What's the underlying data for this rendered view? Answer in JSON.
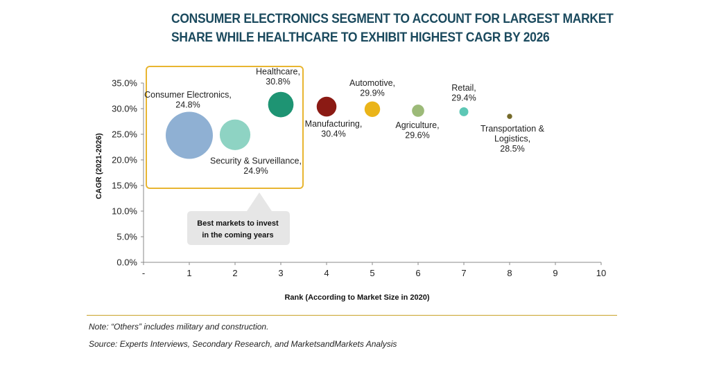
{
  "title_lines": [
    "CONSUMER ELECTRONICS SEGMENT TO ACCOUNT FOR LARGEST MARKET",
    "SHARE WHILE HEALTHCARE TO EXHIBIT HIGHEST CAGR BY 2026"
  ],
  "callout": {
    "lines": [
      "Best markets to invest",
      "in the coming years"
    ],
    "box_color": "#e8b530",
    "bubble_color": "#e6e6e6"
  },
  "note": "Note: “Others” includes military and construction.",
  "source": "Source: Experts Interviews, Secondary Research, and MarketsandMarkets Analysis",
  "chart_data": {
    "type": "scatter",
    "title": "CONSUMER ELECTRONICS SEGMENT TO ACCOUNT FOR LARGEST MARKET SHARE WHILE HEALTHCARE TO EXHIBIT HIGHEST CAGR BY 2026",
    "xlabel": "Rank (According to Market Size in 2020)",
    "ylabel": "CAGR (2021-2026)",
    "xlim": [
      0,
      10
    ],
    "ylim": [
      0,
      35
    ],
    "x_tick_labels": [
      "-",
      "1",
      "2",
      "3",
      "4",
      "5",
      "6",
      "7",
      "8",
      "9",
      "10"
    ],
    "y_tick_labels": [
      "0.0%",
      "5.0%",
      "10.0%",
      "15.0%",
      "20.0%",
      "25.0%",
      "30.0%",
      "35.0%"
    ],
    "grid": false,
    "legend": "none",
    "points": [
      {
        "label": [
          "Consumer Electronics,",
          "24.8%"
        ],
        "x": 1,
        "y": 24.8,
        "size": 1.0,
        "color": "#8fb0d3"
      },
      {
        "label": [
          "Security & Surveillance,",
          "24.9%"
        ],
        "x": 2,
        "y": 24.9,
        "size": 0.65,
        "color": "#8ed3c3"
      },
      {
        "label": [
          "Healthcare,",
          "30.8%"
        ],
        "x": 3,
        "y": 30.8,
        "size": 0.54,
        "color": "#1e9473"
      },
      {
        "label": [
          "Manufacturing,",
          "30.4%"
        ],
        "x": 4,
        "y": 30.4,
        "size": 0.42,
        "color": "#8b1a14"
      },
      {
        "label": [
          "Automotive,",
          "29.9%"
        ],
        "x": 5,
        "y": 29.9,
        "size": 0.33,
        "color": "#eab419"
      },
      {
        "label": [
          "Agriculture,",
          "29.6%"
        ],
        "x": 6,
        "y": 29.6,
        "size": 0.26,
        "color": "#9cba78"
      },
      {
        "label": [
          "Retail,",
          "29.4%"
        ],
        "x": 7,
        "y": 29.4,
        "size": 0.19,
        "color": "#5dc7b5"
      },
      {
        "label": [
          "Transportation &",
          "Logistics,",
          "28.5%"
        ],
        "x": 8,
        "y": 28.5,
        "size": 0.11,
        "color": "#756a2a"
      }
    ]
  }
}
